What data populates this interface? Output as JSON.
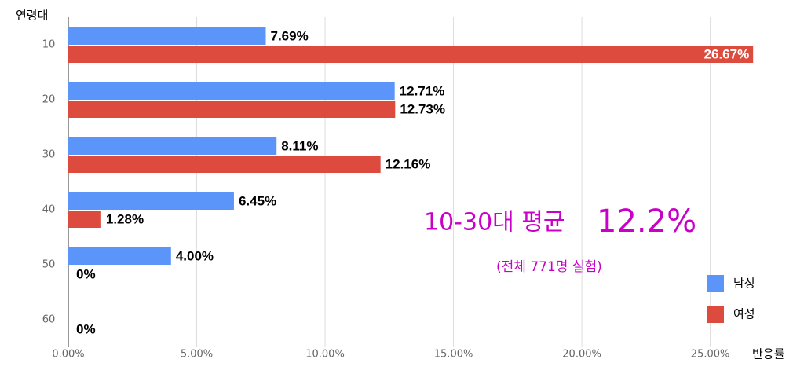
{
  "chart_data": {
    "type": "bar",
    "orientation": "horizontal",
    "y_label": "연령대",
    "x_label": "반응률",
    "categories": [
      "10",
      "20",
      "30",
      "40",
      "50",
      "60"
    ],
    "series": [
      {
        "name": "남성",
        "color": "#5b95f9",
        "values": [
          7.69,
          12.71,
          8.11,
          6.45,
          4.0,
          null
        ],
        "value_labels": [
          "7.69%",
          "12.71%",
          "8.11%",
          "6.45%",
          "4.00%",
          null
        ]
      },
      {
        "name": "여성",
        "color": "#dd4b3e",
        "values": [
          26.67,
          12.73,
          12.16,
          1.28,
          0,
          0
        ],
        "value_labels": [
          "26.67%",
          "12.73%",
          "12.16%",
          "1.28%",
          "0%",
          "0%"
        ]
      }
    ],
    "xlim": [
      0,
      27
    ],
    "xticks": [
      {
        "value": 0,
        "label": "0.00%"
      },
      {
        "value": 5,
        "label": "5.00%"
      },
      {
        "value": 10,
        "label": "10.00%"
      },
      {
        "value": 15,
        "label": "15.00%"
      },
      {
        "value": 20,
        "label": "20.00%"
      },
      {
        "value": 25,
        "label": "25.00%"
      }
    ],
    "grid": true,
    "legend": "bottom-right",
    "annotations": [
      "10-30대 평균",
      "12.2%",
      "(전체 771명 실험)"
    ]
  }
}
